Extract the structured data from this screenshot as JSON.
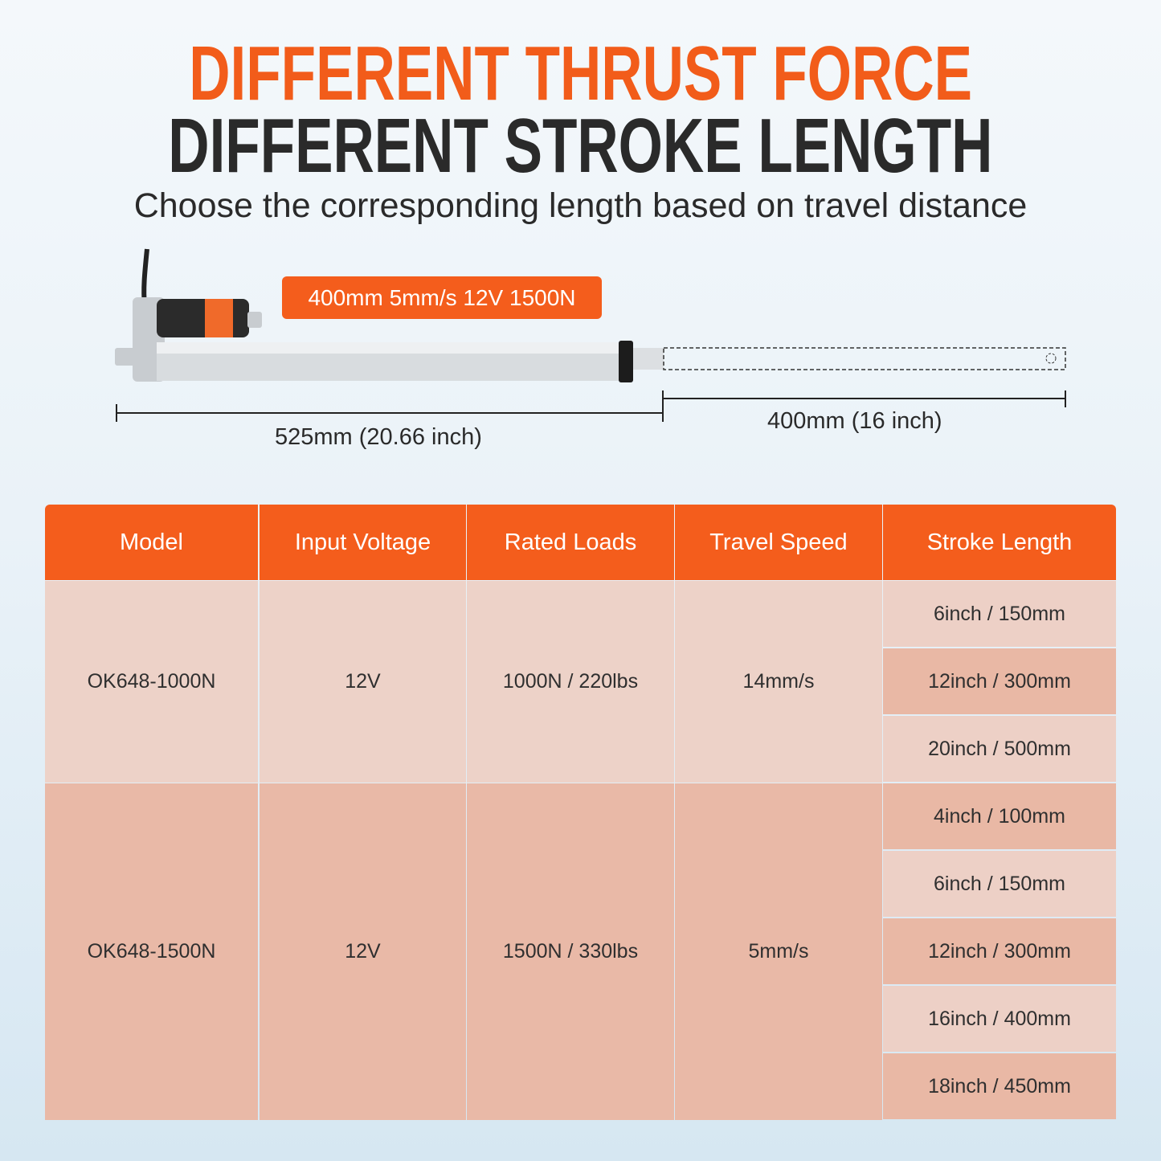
{
  "headline": {
    "line1": "DIFFERENT THRUST FORCE",
    "line2": "DIFFERENT STROKE LENGTH",
    "subtitle": "Choose the corresponding length based on travel distance"
  },
  "product": {
    "badge": "400mm 5mm/s 12V 1500N",
    "retracted_length": "525mm (20.66 inch)",
    "stroke_length": "400mm (16 inch)"
  },
  "colors": {
    "accent": "#f45d1c",
    "title_dark": "#2a2a2a",
    "row_light": "#edd0c6",
    "row_dark": "#e9b8a5"
  },
  "table": {
    "headers": [
      "Model",
      "Input Voltage",
      "Rated Loads",
      "Travel Speed",
      "Stroke Length"
    ],
    "groups": [
      {
        "model": "OK648-1000N",
        "voltage": "12V",
        "load": "1000N / 220lbs",
        "speed": "14mm/s",
        "strokes": [
          "6inch / 150mm",
          "12inch / 300mm",
          "20inch / 500mm"
        ]
      },
      {
        "model": "OK648-1500N",
        "voltage": "12V",
        "load": "1500N / 330lbs",
        "speed": "5mm/s",
        "strokes": [
          "4inch / 100mm",
          "6inch / 150mm",
          "12inch / 300mm",
          "16inch / 400mm",
          "18inch / 450mm"
        ]
      }
    ]
  }
}
